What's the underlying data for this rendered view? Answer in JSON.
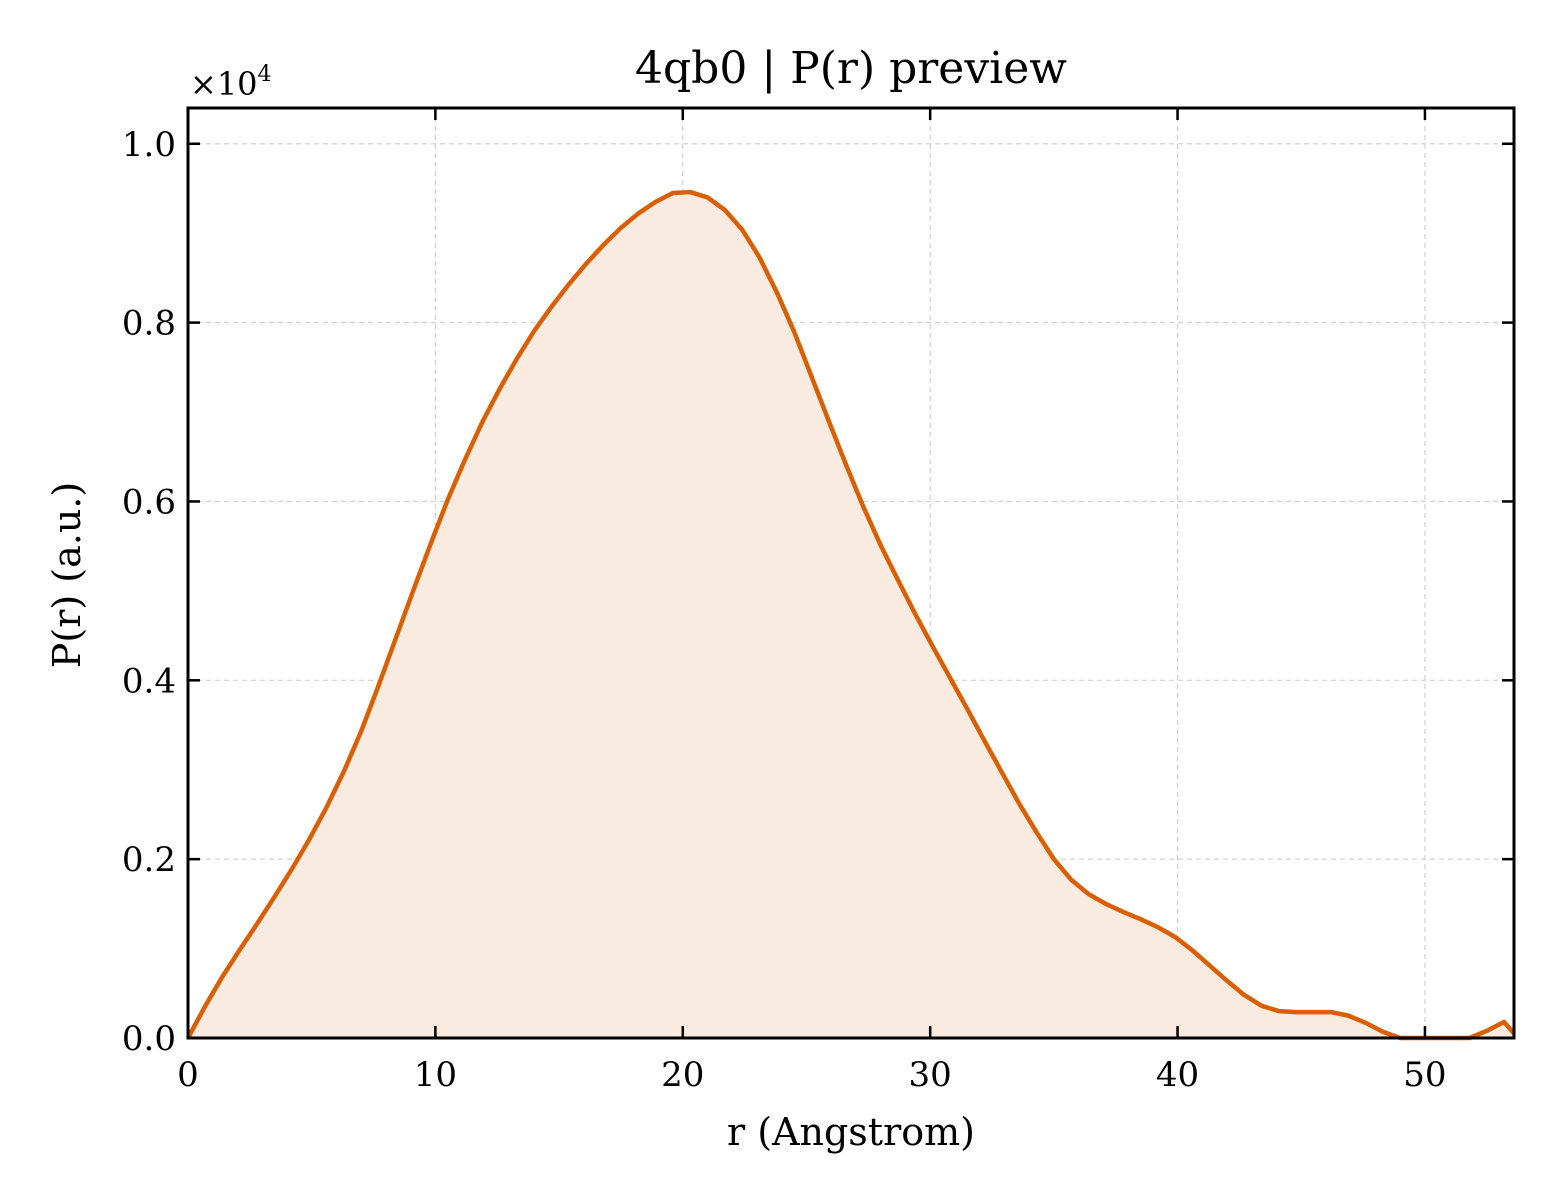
{
  "chart_data": {
    "type": "area",
    "title": "4qb0 | P(r) preview",
    "xlabel": "r (Angstrom)",
    "ylabel": "P(r) (a.u.)",
    "y_multiplier_base": "×10",
    "y_multiplier_exp": "4",
    "xlim": [
      0,
      53.6
    ],
    "ylim": [
      0,
      1.04
    ],
    "xticks": [
      0,
      10,
      20,
      30,
      40,
      50
    ],
    "xtick_labels": [
      "0",
      "10",
      "20",
      "30",
      "40",
      "50"
    ],
    "yticks": [
      0,
      0.2,
      0.4,
      0.6,
      0.8,
      1.0
    ],
    "ytick_labels": [
      "0.0",
      "0.2",
      "0.4",
      "0.6",
      "0.8",
      "1.0"
    ],
    "grid": true,
    "line_color": "#d95f02",
    "fill_color": "#f9ebe0",
    "series": [
      {
        "x": [
          0,
          0.7,
          1.4,
          2.1,
          2.8,
          3.5,
          4.2,
          4.9,
          5.6,
          6.3,
          7.0,
          7.7,
          8.4,
          9.1,
          9.8,
          10.5,
          11.2,
          11.9,
          12.6,
          13.3,
          14.0,
          14.7,
          15.4,
          16.1,
          16.8,
          17.5,
          18.2,
          18.9,
          19.6,
          20.3,
          21.0,
          21.7,
          22.4,
          23.1,
          23.8,
          24.5,
          25.2,
          25.9,
          26.6,
          27.3,
          28.0,
          28.7,
          29.4,
          30.1,
          30.8,
          31.5,
          32.2,
          32.9,
          33.6,
          34.3,
          35.0,
          35.7,
          36.4,
          37.1,
          37.8,
          38.5,
          39.2,
          39.9,
          40.6,
          41.3,
          42.0,
          42.7,
          43.4,
          44.1,
          44.8,
          45.5,
          46.2,
          46.9,
          47.6,
          48.3,
          49.0,
          49.7,
          50.4,
          51.1,
          51.8,
          52.5,
          53.2,
          53.6
        ],
        "y": [
          0.0,
          0.036,
          0.069,
          0.099,
          0.128,
          0.158,
          0.189,
          0.222,
          0.258,
          0.298,
          0.343,
          0.394,
          0.447,
          0.5,
          0.552,
          0.602,
          0.647,
          0.689,
          0.726,
          0.76,
          0.791,
          0.818,
          0.843,
          0.866,
          0.887,
          0.906,
          0.922,
          0.935,
          0.945,
          0.946,
          0.94,
          0.926,
          0.904,
          0.873,
          0.834,
          0.79,
          0.74,
          0.69,
          0.641,
          0.594,
          0.551,
          0.512,
          0.474,
          0.438,
          0.403,
          0.368,
          0.332,
          0.297,
          0.262,
          0.23,
          0.2,
          0.177,
          0.161,
          0.15,
          0.141,
          0.133,
          0.124,
          0.113,
          0.098,
          0.081,
          0.064,
          0.048,
          0.036,
          0.03,
          0.029,
          0.029,
          0.029,
          0.025,
          0.017,
          0.007,
          0.0,
          0.0,
          0.0,
          0.0,
          0.0,
          0.008,
          0.018,
          0.005
        ]
      }
    ]
  }
}
